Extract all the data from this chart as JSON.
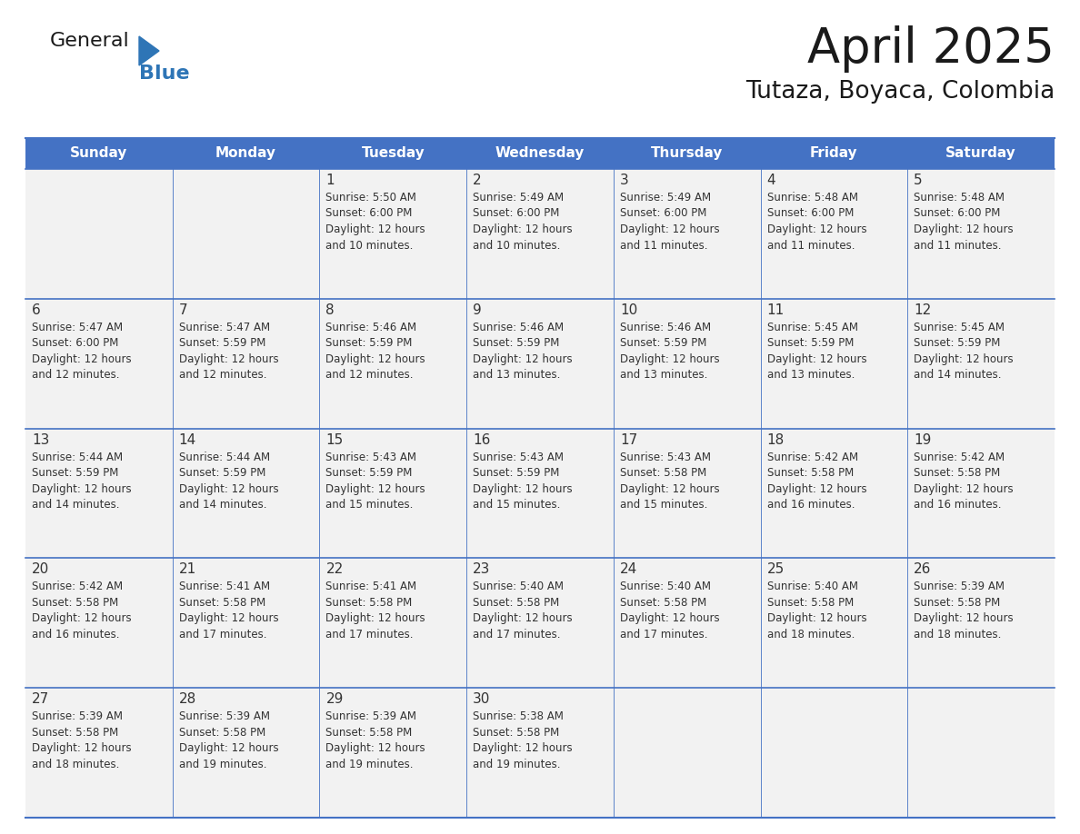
{
  "title": "April 2025",
  "subtitle": "Tutaza, Boyaca, Colombia",
  "days_of_week": [
    "Sunday",
    "Monday",
    "Tuesday",
    "Wednesday",
    "Thursday",
    "Friday",
    "Saturday"
  ],
  "header_bg": "#4472C4",
  "header_text": "#FFFFFF",
  "cell_bg": "#F2F2F2",
  "border_color": "#4472C4",
  "day_number_color": "#333333",
  "text_color": "#333333",
  "title_color": "#1a1a1a",
  "logo_general_color": "#1a1a1a",
  "logo_blue_color": "#2E75B6",
  "weeks": [
    {
      "days": [
        {
          "day": null,
          "info": null
        },
        {
          "day": null,
          "info": null
        },
        {
          "day": 1,
          "info": "Sunrise: 5:50 AM\nSunset: 6:00 PM\nDaylight: 12 hours\nand 10 minutes."
        },
        {
          "day": 2,
          "info": "Sunrise: 5:49 AM\nSunset: 6:00 PM\nDaylight: 12 hours\nand 10 minutes."
        },
        {
          "day": 3,
          "info": "Sunrise: 5:49 AM\nSunset: 6:00 PM\nDaylight: 12 hours\nand 11 minutes."
        },
        {
          "day": 4,
          "info": "Sunrise: 5:48 AM\nSunset: 6:00 PM\nDaylight: 12 hours\nand 11 minutes."
        },
        {
          "day": 5,
          "info": "Sunrise: 5:48 AM\nSunset: 6:00 PM\nDaylight: 12 hours\nand 11 minutes."
        }
      ]
    },
    {
      "days": [
        {
          "day": 6,
          "info": "Sunrise: 5:47 AM\nSunset: 6:00 PM\nDaylight: 12 hours\nand 12 minutes."
        },
        {
          "day": 7,
          "info": "Sunrise: 5:47 AM\nSunset: 5:59 PM\nDaylight: 12 hours\nand 12 minutes."
        },
        {
          "day": 8,
          "info": "Sunrise: 5:46 AM\nSunset: 5:59 PM\nDaylight: 12 hours\nand 12 minutes."
        },
        {
          "day": 9,
          "info": "Sunrise: 5:46 AM\nSunset: 5:59 PM\nDaylight: 12 hours\nand 13 minutes."
        },
        {
          "day": 10,
          "info": "Sunrise: 5:46 AM\nSunset: 5:59 PM\nDaylight: 12 hours\nand 13 minutes."
        },
        {
          "day": 11,
          "info": "Sunrise: 5:45 AM\nSunset: 5:59 PM\nDaylight: 12 hours\nand 13 minutes."
        },
        {
          "day": 12,
          "info": "Sunrise: 5:45 AM\nSunset: 5:59 PM\nDaylight: 12 hours\nand 14 minutes."
        }
      ]
    },
    {
      "days": [
        {
          "day": 13,
          "info": "Sunrise: 5:44 AM\nSunset: 5:59 PM\nDaylight: 12 hours\nand 14 minutes."
        },
        {
          "day": 14,
          "info": "Sunrise: 5:44 AM\nSunset: 5:59 PM\nDaylight: 12 hours\nand 14 minutes."
        },
        {
          "day": 15,
          "info": "Sunrise: 5:43 AM\nSunset: 5:59 PM\nDaylight: 12 hours\nand 15 minutes."
        },
        {
          "day": 16,
          "info": "Sunrise: 5:43 AM\nSunset: 5:59 PM\nDaylight: 12 hours\nand 15 minutes."
        },
        {
          "day": 17,
          "info": "Sunrise: 5:43 AM\nSunset: 5:58 PM\nDaylight: 12 hours\nand 15 minutes."
        },
        {
          "day": 18,
          "info": "Sunrise: 5:42 AM\nSunset: 5:58 PM\nDaylight: 12 hours\nand 16 minutes."
        },
        {
          "day": 19,
          "info": "Sunrise: 5:42 AM\nSunset: 5:58 PM\nDaylight: 12 hours\nand 16 minutes."
        }
      ]
    },
    {
      "days": [
        {
          "day": 20,
          "info": "Sunrise: 5:42 AM\nSunset: 5:58 PM\nDaylight: 12 hours\nand 16 minutes."
        },
        {
          "day": 21,
          "info": "Sunrise: 5:41 AM\nSunset: 5:58 PM\nDaylight: 12 hours\nand 17 minutes."
        },
        {
          "day": 22,
          "info": "Sunrise: 5:41 AM\nSunset: 5:58 PM\nDaylight: 12 hours\nand 17 minutes."
        },
        {
          "day": 23,
          "info": "Sunrise: 5:40 AM\nSunset: 5:58 PM\nDaylight: 12 hours\nand 17 minutes."
        },
        {
          "day": 24,
          "info": "Sunrise: 5:40 AM\nSunset: 5:58 PM\nDaylight: 12 hours\nand 17 minutes."
        },
        {
          "day": 25,
          "info": "Sunrise: 5:40 AM\nSunset: 5:58 PM\nDaylight: 12 hours\nand 18 minutes."
        },
        {
          "day": 26,
          "info": "Sunrise: 5:39 AM\nSunset: 5:58 PM\nDaylight: 12 hours\nand 18 minutes."
        }
      ]
    },
    {
      "days": [
        {
          "day": 27,
          "info": "Sunrise: 5:39 AM\nSunset: 5:58 PM\nDaylight: 12 hours\nand 18 minutes."
        },
        {
          "day": 28,
          "info": "Sunrise: 5:39 AM\nSunset: 5:58 PM\nDaylight: 12 hours\nand 19 minutes."
        },
        {
          "day": 29,
          "info": "Sunrise: 5:39 AM\nSunset: 5:58 PM\nDaylight: 12 hours\nand 19 minutes."
        },
        {
          "day": 30,
          "info": "Sunrise: 5:38 AM\nSunset: 5:58 PM\nDaylight: 12 hours\nand 19 minutes."
        },
        {
          "day": null,
          "info": null
        },
        {
          "day": null,
          "info": null
        },
        {
          "day": null,
          "info": null
        }
      ]
    }
  ]
}
